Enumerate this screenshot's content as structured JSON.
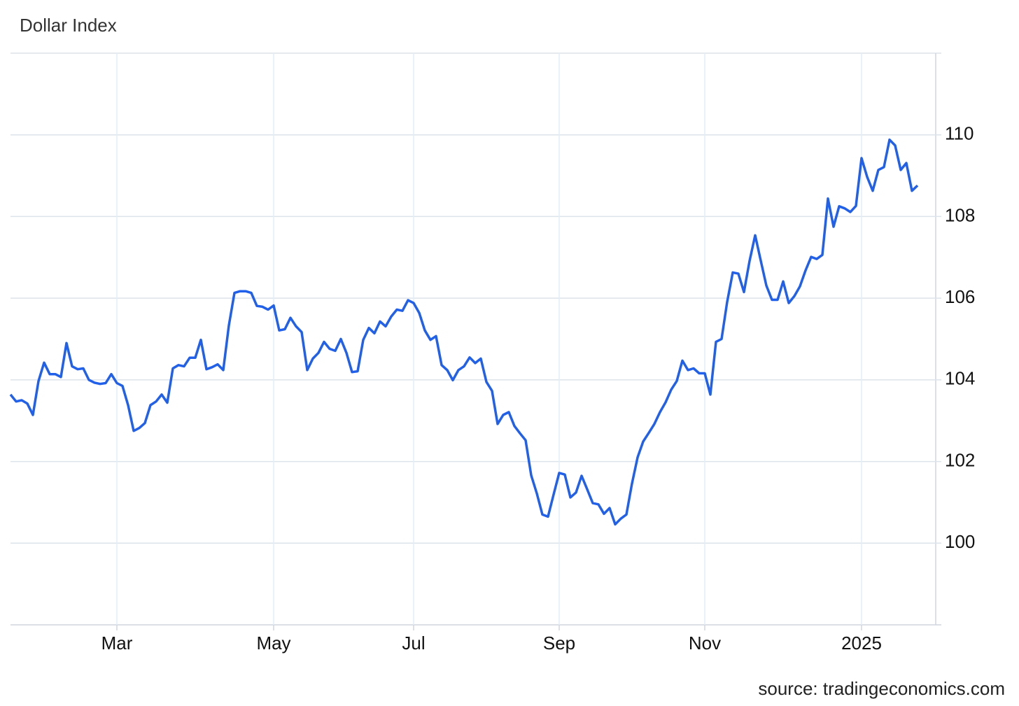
{
  "chart_data": {
    "type": "line",
    "title": "Dollar Index",
    "source": "source: tradingeconomics.com",
    "categories": [
      null,
      null,
      null,
      null,
      null,
      null,
      null,
      null,
      null,
      null,
      null,
      null,
      null,
      null,
      null,
      null,
      null,
      null,
      null,
      "Mar",
      null,
      null,
      null,
      null,
      null,
      null,
      null,
      null,
      null,
      null,
      null,
      null,
      null,
      null,
      null,
      null,
      null,
      null,
      null,
      null,
      null,
      null,
      null,
      null,
      null,
      null,
      null,
      "May",
      null,
      null,
      null,
      null,
      null,
      null,
      null,
      null,
      null,
      null,
      null,
      null,
      null,
      null,
      null,
      null,
      null,
      null,
      null,
      null,
      null,
      null,
      null,
      null,
      "Jul",
      null,
      null,
      null,
      null,
      null,
      null,
      null,
      null,
      null,
      null,
      null,
      null,
      null,
      null,
      null,
      null,
      null,
      null,
      null,
      null,
      null,
      null,
      null,
      null,
      null,
      "Sep",
      null,
      null,
      null,
      null,
      null,
      null,
      null,
      null,
      null,
      null,
      null,
      null,
      null,
      null,
      null,
      null,
      null,
      null,
      null,
      null,
      null,
      null,
      null,
      null,
      null,
      "Nov",
      null,
      null,
      null,
      null,
      null,
      null,
      null,
      null,
      null,
      null,
      null,
      null,
      null,
      null,
      null,
      null,
      null,
      null,
      null,
      null,
      null,
      null,
      null,
      null,
      null,
      null,
      null,
      "2025",
      null,
      null,
      null,
      null,
      null,
      null,
      null,
      null,
      null,
      null
    ],
    "series": [
      {
        "name": "Dollar Index",
        "color": "#2160ea",
        "values": [
          103.64,
          103.47,
          103.5,
          103.42,
          103.14,
          103.97,
          104.42,
          104.14,
          104.14,
          104.07,
          104.9,
          104.33,
          104.26,
          104.28,
          104.0,
          103.93,
          103.9,
          103.92,
          104.14,
          103.92,
          103.85,
          103.38,
          102.75,
          102.82,
          102.94,
          103.38,
          103.47,
          103.64,
          103.44,
          104.28,
          104.36,
          104.33,
          104.54,
          104.54,
          104.98,
          104.26,
          104.31,
          104.38,
          104.24,
          105.33,
          106.13,
          106.17,
          106.17,
          106.13,
          105.81,
          105.79,
          105.72,
          105.82,
          105.21,
          105.24,
          105.52,
          105.31,
          105.17,
          104.24,
          104.52,
          104.66,
          104.93,
          104.76,
          104.71,
          105.0,
          104.66,
          104.19,
          104.21,
          104.98,
          105.27,
          105.14,
          105.43,
          105.31,
          105.55,
          105.72,
          105.69,
          105.95,
          105.88,
          105.64,
          105.21,
          104.98,
          105.07,
          104.36,
          104.24,
          103.99,
          104.24,
          104.33,
          104.55,
          104.41,
          104.52,
          103.95,
          103.73,
          102.92,
          103.14,
          103.21,
          102.87,
          102.69,
          102.52,
          101.66,
          101.22,
          100.7,
          100.65,
          101.19,
          101.72,
          101.68,
          101.12,
          101.24,
          101.65,
          101.32,
          100.98,
          100.95,
          100.72,
          100.86,
          100.46,
          100.6,
          100.7,
          101.46,
          102.1,
          102.49,
          102.7,
          102.92,
          103.21,
          103.45,
          103.76,
          103.97,
          104.47,
          104.24,
          104.28,
          104.16,
          104.16,
          103.64,
          104.93,
          105.0,
          105.91,
          106.63,
          106.6,
          106.15,
          106.91,
          107.54,
          106.92,
          106.31,
          105.96,
          105.96,
          106.41,
          105.88,
          106.05,
          106.29,
          106.68,
          107.01,
          106.96,
          107.06,
          108.44,
          107.75,
          108.25,
          108.2,
          108.11,
          108.26,
          109.43,
          108.97,
          108.63,
          109.14,
          109.21,
          109.88,
          109.74,
          109.14,
          109.31,
          108.63,
          108.76
        ]
      }
    ],
    "ylim": [
      98,
      112
    ],
    "yticks": [
      100,
      102,
      104,
      106,
      108,
      110
    ],
    "grid": true
  }
}
